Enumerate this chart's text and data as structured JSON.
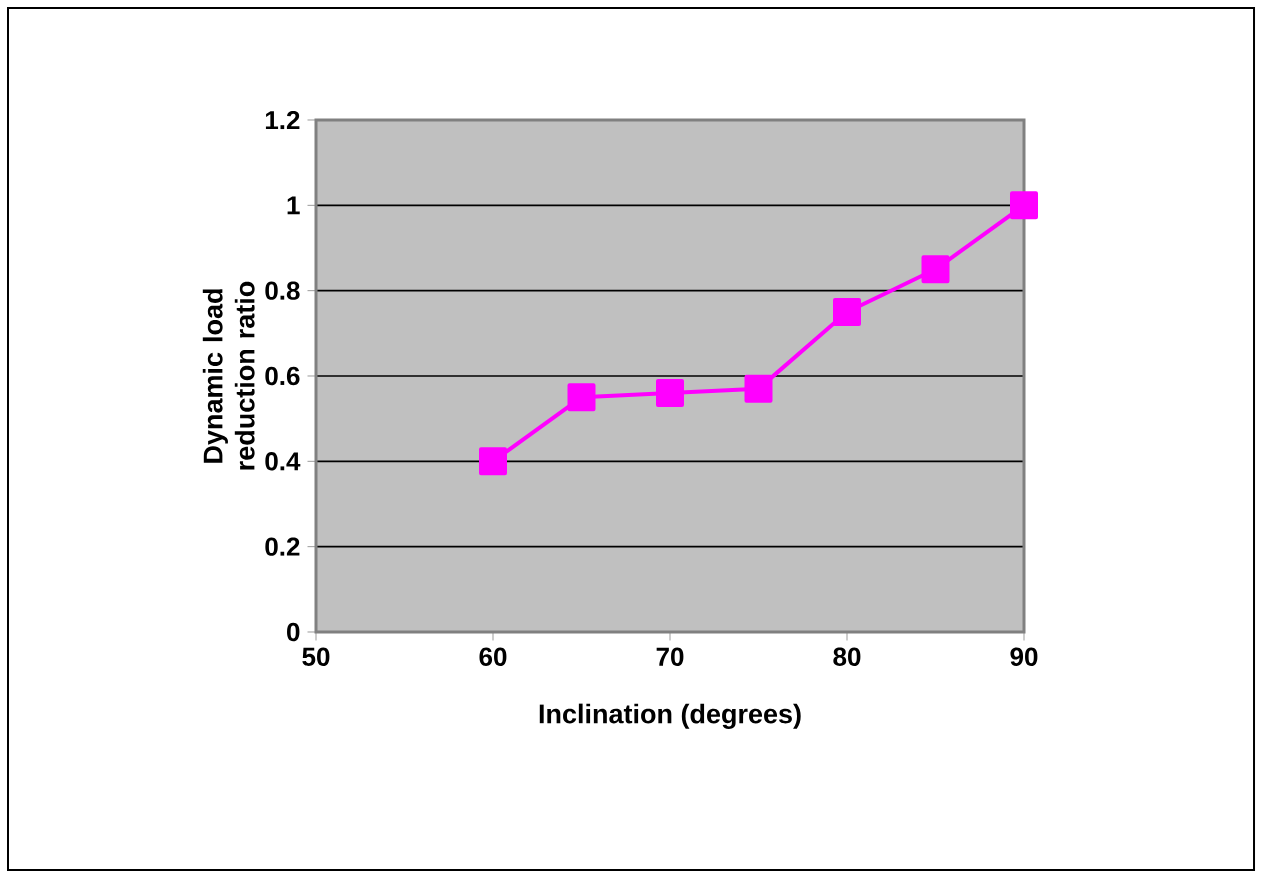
{
  "chart_data": {
    "type": "line",
    "xlabel": "Inclination (degrees)",
    "ylabel": "Dynamic load reduction ratio",
    "x": [
      60,
      65,
      70,
      75,
      80,
      85,
      90
    ],
    "series": [
      {
        "color": "#ff00ff",
        "values": [
          0.4,
          0.55,
          0.56,
          0.57,
          0.75,
          0.85,
          1.0
        ]
      }
    ],
    "xlim": [
      50,
      90
    ],
    "xticks": [
      50,
      60,
      70,
      80,
      90
    ],
    "ylim": [
      0,
      1.2
    ],
    "yticks": [
      0,
      0.2,
      0.4,
      0.6,
      0.8,
      1,
      1.2
    ],
    "grid": "y",
    "marker": "square",
    "line_style": "solid"
  }
}
